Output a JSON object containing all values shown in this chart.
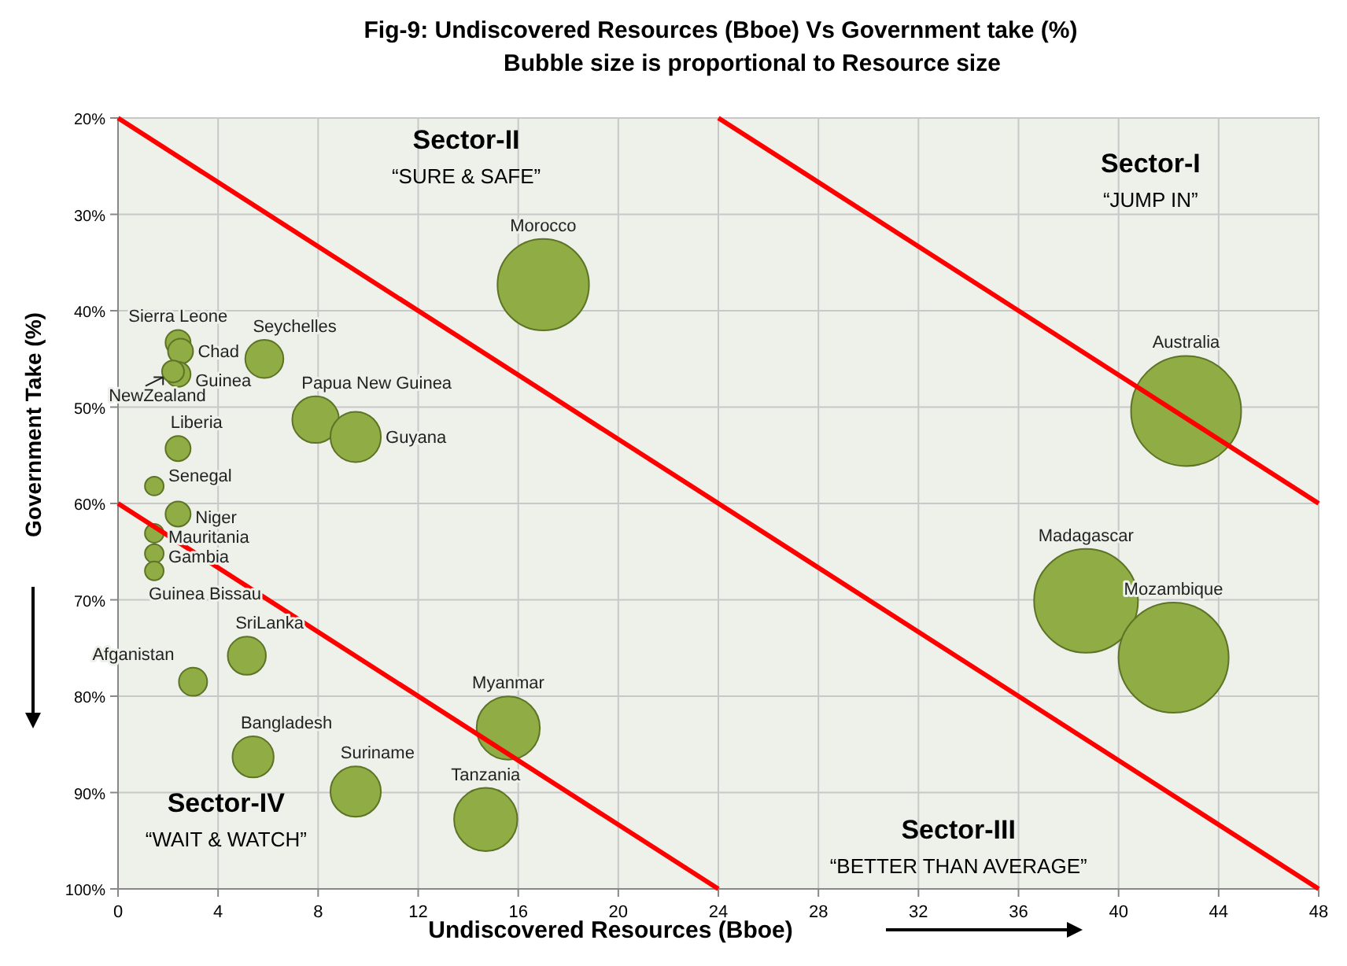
{
  "chart_data": {
    "type": "bubble",
    "title": "Fig-9: Undiscovered Resources  (Bboe) Vs Government take (%)",
    "subtitle": "Bubble size is proportional to Resource size",
    "xlabel": "Undiscovered Resources (Bboe)",
    "ylabel": "Government Take (%)",
    "xlim": [
      0,
      48
    ],
    "xticks": [
      0,
      4,
      8,
      12,
      16,
      20,
      24,
      28,
      32,
      36,
      40,
      44,
      48
    ],
    "ylim": [
      100,
      20
    ],
    "yticks": [
      {
        "value": 20,
        "label": "20%"
      },
      {
        "value": 30,
        "label": "30%"
      },
      {
        "value": 40,
        "label": "40%"
      },
      {
        "value": 50,
        "label": "50%"
      },
      {
        "value": 60,
        "label": "60%"
      },
      {
        "value": 70,
        "label": "70%"
      },
      {
        "value": 80,
        "label": "80%"
      },
      {
        "value": 90,
        "label": "90%"
      },
      {
        "value": 100,
        "label": "100%"
      }
    ],
    "grid": true,
    "marker": "circle",
    "series": [
      {
        "name": "Morocco",
        "color": "#8fac45",
        "x": [
          17.0
        ],
        "values": [
          37.3
        ],
        "sizes": [
          0.69
        ]
      },
      {
        "name": "Sierra Leone",
        "color": "#8fac45",
        "x": [
          2.4
        ],
        "values": [
          43.3
        ],
        "sizes": [
          0.052
        ]
      },
      {
        "name": "Chad",
        "color": "#8fac45",
        "x": [
          2.5
        ],
        "values": [
          44.2
        ],
        "sizes": [
          0.052
        ]
      },
      {
        "name": "Seychelles",
        "color": "#8fac45",
        "x": [
          5.85
        ],
        "values": [
          45.0
        ],
        "sizes": [
          0.12
        ]
      },
      {
        "name": "Guinea",
        "color": "#8fac45",
        "x": [
          2.4
        ],
        "values": [
          46.6
        ],
        "sizes": [
          0.052
        ]
      },
      {
        "name": "NewZealand",
        "color": "#8fac45",
        "x": [
          2.2
        ],
        "values": [
          46.3
        ],
        "sizes": [
          0.04
        ]
      },
      {
        "name": "Papua New Guinea",
        "color": "#8fac45",
        "x": [
          7.9
        ],
        "values": [
          51.3
        ],
        "sizes": [
          0.18
        ]
      },
      {
        "name": "Guyana",
        "color": "#8fac45",
        "x": [
          9.5
        ],
        "values": [
          53.1
        ],
        "sizes": [
          0.21
        ]
      },
      {
        "name": "Liberia",
        "color": "#8fac45",
        "x": [
          2.4
        ],
        "values": [
          54.3
        ],
        "sizes": [
          0.052
        ]
      },
      {
        "name": "Senegal",
        "color": "#8fac45",
        "x": [
          1.45
        ],
        "values": [
          58.2
        ],
        "sizes": [
          0.029
        ]
      },
      {
        "name": "Niger",
        "color": "#8fac45",
        "x": [
          2.4
        ],
        "values": [
          61.1
        ],
        "sizes": [
          0.052
        ]
      },
      {
        "name": "Mauritania",
        "color": "#8fac45",
        "x": [
          1.45
        ],
        "values": [
          63.1
        ],
        "sizes": [
          0.029
        ]
      },
      {
        "name": "Gambia",
        "color": "#8fac45",
        "x": [
          1.45
        ],
        "values": [
          65.2
        ],
        "sizes": [
          0.029
        ]
      },
      {
        "name": "Guinea Bissau",
        "color": "#8fac45",
        "x": [
          1.45
        ],
        "values": [
          67.0
        ],
        "sizes": [
          0.029
        ]
      },
      {
        "name": "SriLanka",
        "color": "#8fac45",
        "x": [
          5.15
        ],
        "values": [
          75.8
        ],
        "sizes": [
          0.12
        ]
      },
      {
        "name": "Afganistan",
        "color": "#8fac45",
        "x": [
          3.0
        ],
        "values": [
          78.5
        ],
        "sizes": [
          0.066
        ]
      },
      {
        "name": "Bangladesh",
        "color": "#8fac45",
        "x": [
          5.4
        ],
        "values": [
          86.3
        ],
        "sizes": [
          0.14
        ]
      },
      {
        "name": "Suriname",
        "color": "#8fac45",
        "x": [
          9.5
        ],
        "values": [
          89.9
        ],
        "sizes": [
          0.21
        ]
      },
      {
        "name": "Myanmar",
        "color": "#8fac45",
        "x": [
          15.6
        ],
        "values": [
          83.3
        ],
        "sizes": [
          0.33
        ]
      },
      {
        "name": "Tanzania",
        "color": "#8fac45",
        "x": [
          14.7
        ],
        "values": [
          92.8
        ],
        "sizes": [
          0.33
        ]
      },
      {
        "name": "Australia",
        "color": "#8fac45",
        "x": [
          42.7
        ],
        "values": [
          50.4
        ],
        "sizes": [
          1
        ]
      },
      {
        "name": "Madagascar",
        "color": "#8fac45",
        "x": [
          38.7
        ],
        "values": [
          70.1
        ],
        "sizes": [
          0.89
        ]
      },
      {
        "name": "Mozambique",
        "color": "#8fac45",
        "x": [
          42.2
        ],
        "values": [
          76.0
        ],
        "sizes": [
          1
        ]
      },
      {
        "type": "line",
        "color": "#ff0000",
        "x": [
          0,
          48
        ],
        "values": [
          20,
          100
        ],
        "marker": "none"
      },
      {
        "type": "line",
        "color": "#ff0000",
        "x": [
          0,
          24
        ],
        "values": [
          60,
          100
        ],
        "marker": "none"
      },
      {
        "type": "line",
        "color": "#ff0000",
        "x": [
          24,
          48
        ],
        "values": [
          20,
          60
        ],
        "marker": "none"
      }
    ],
    "annotations": [
      "Sector-II",
      "“SURE & SAFE”",
      "Sector-I",
      "“JUMP IN”",
      "Sector-IV",
      "“WAIT & WATCH”",
      "Sector-III",
      "“BETTER THAN AVERAGE”"
    ]
  }
}
